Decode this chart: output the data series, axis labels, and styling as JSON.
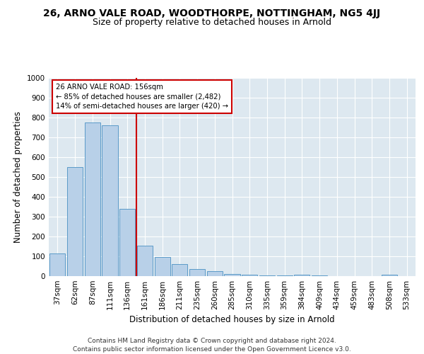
{
  "title1": "26, ARNO VALE ROAD, WOODTHORPE, NOTTINGHAM, NG5 4JJ",
  "title2": "Size of property relative to detached houses in Arnold",
  "xlabel": "Distribution of detached houses by size in Arnold",
  "ylabel": "Number of detached properties",
  "categories": [
    "37sqm",
    "62sqm",
    "87sqm",
    "111sqm",
    "136sqm",
    "161sqm",
    "186sqm",
    "211sqm",
    "235sqm",
    "260sqm",
    "285sqm",
    "310sqm",
    "335sqm",
    "359sqm",
    "384sqm",
    "409sqm",
    "434sqm",
    "459sqm",
    "483sqm",
    "508sqm",
    "533sqm"
  ],
  "values": [
    113,
    551,
    775,
    760,
    340,
    155,
    95,
    60,
    35,
    25,
    12,
    8,
    5,
    3,
    8,
    2,
    1,
    1,
    1,
    8,
    1
  ],
  "bar_color": "#b8d0e8",
  "bar_edge_color": "#5b9bc8",
  "bg_color": "#dde8f0",
  "grid_color": "#ffffff",
  "vline_color": "#cc0000",
  "annotation_text": "26 ARNO VALE ROAD: 156sqm\n← 85% of detached houses are smaller (2,482)\n14% of semi-detached houses are larger (420) →",
  "annotation_box_color": "#ffffff",
  "annotation_box_edge": "#cc0000",
  "footer": "Contains HM Land Registry data © Crown copyright and database right 2024.\nContains public sector information licensed under the Open Government Licence v3.0.",
  "ylim": [
    0,
    1000
  ],
  "yticks": [
    0,
    100,
    200,
    300,
    400,
    500,
    600,
    700,
    800,
    900,
    1000
  ],
  "title1_fontsize": 10,
  "title2_fontsize": 9,
  "xlabel_fontsize": 8.5,
  "ylabel_fontsize": 8.5,
  "tick_fontsize": 7.5,
  "footer_fontsize": 6.5,
  "vline_pos": 4.5
}
